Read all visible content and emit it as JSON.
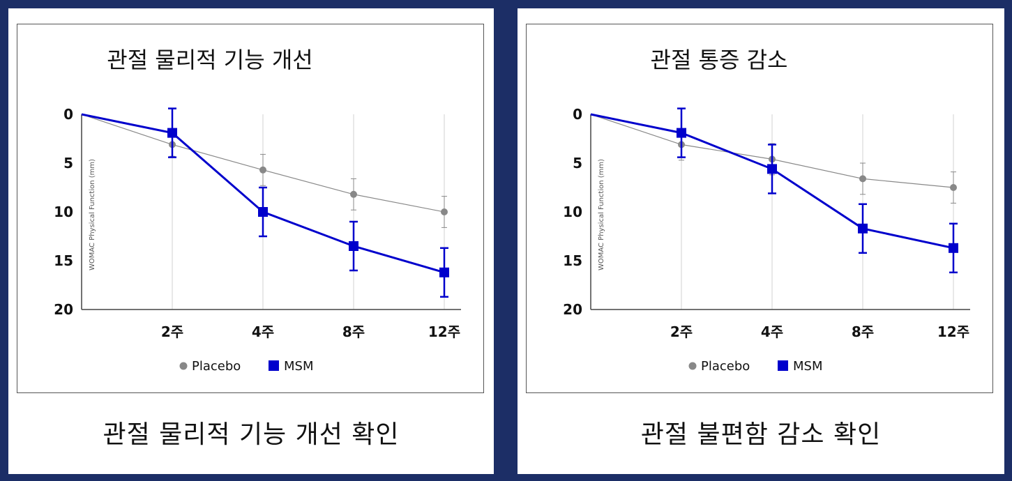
{
  "chart_data": [
    {
      "type": "line",
      "title": "관절 물리적 기능 개선",
      "caption": "관절 물리적 기능 개선 확인",
      "ylabel": "WOMAC Physical Function (mm)",
      "yticks": [
        "0",
        "5",
        "10",
        "15",
        "20"
      ],
      "ylim": [
        0,
        20
      ],
      "y_inverted": true,
      "categories": [
        "",
        "2주",
        "4주",
        "8주",
        "12주"
      ],
      "grid": "vertical",
      "legend_position": "bottom",
      "series": [
        {
          "name": "Placebo",
          "color": "#888888",
          "marker": "circle",
          "values": [
            0,
            3.1,
            5.7,
            8.2,
            10.0
          ],
          "errors": [
            0,
            1.2,
            1.6,
            1.6,
            1.6
          ]
        },
        {
          "name": "MSM",
          "color": "#0000cc",
          "marker": "square",
          "values": [
            0,
            1.9,
            10.0,
            13.5,
            16.2
          ],
          "errors": [
            0,
            2.5,
            2.5,
            2.5,
            2.5
          ]
        }
      ]
    },
    {
      "type": "line",
      "title": "관절 통증 감소",
      "caption": "관절 불편함 감소 확인",
      "ylabel": "WOMAC Physical Function (mm)",
      "yticks": [
        "0",
        "5",
        "10",
        "15",
        "20"
      ],
      "ylim": [
        0,
        20
      ],
      "y_inverted": true,
      "categories": [
        "",
        "2주",
        "4주",
        "8주",
        "12주"
      ],
      "grid": "vertical",
      "legend_position": "bottom",
      "series": [
        {
          "name": "Placebo",
          "color": "#888888",
          "marker": "circle",
          "values": [
            0,
            3.1,
            4.6,
            6.6,
            7.5
          ],
          "errors": [
            0,
            1.6,
            1.6,
            1.6,
            1.6
          ]
        },
        {
          "name": "MSM",
          "color": "#0000cc",
          "marker": "square",
          "values": [
            0,
            1.9,
            5.6,
            11.7,
            13.7
          ],
          "errors": [
            0,
            2.5,
            2.5,
            2.5,
            2.5
          ]
        }
      ]
    }
  ]
}
